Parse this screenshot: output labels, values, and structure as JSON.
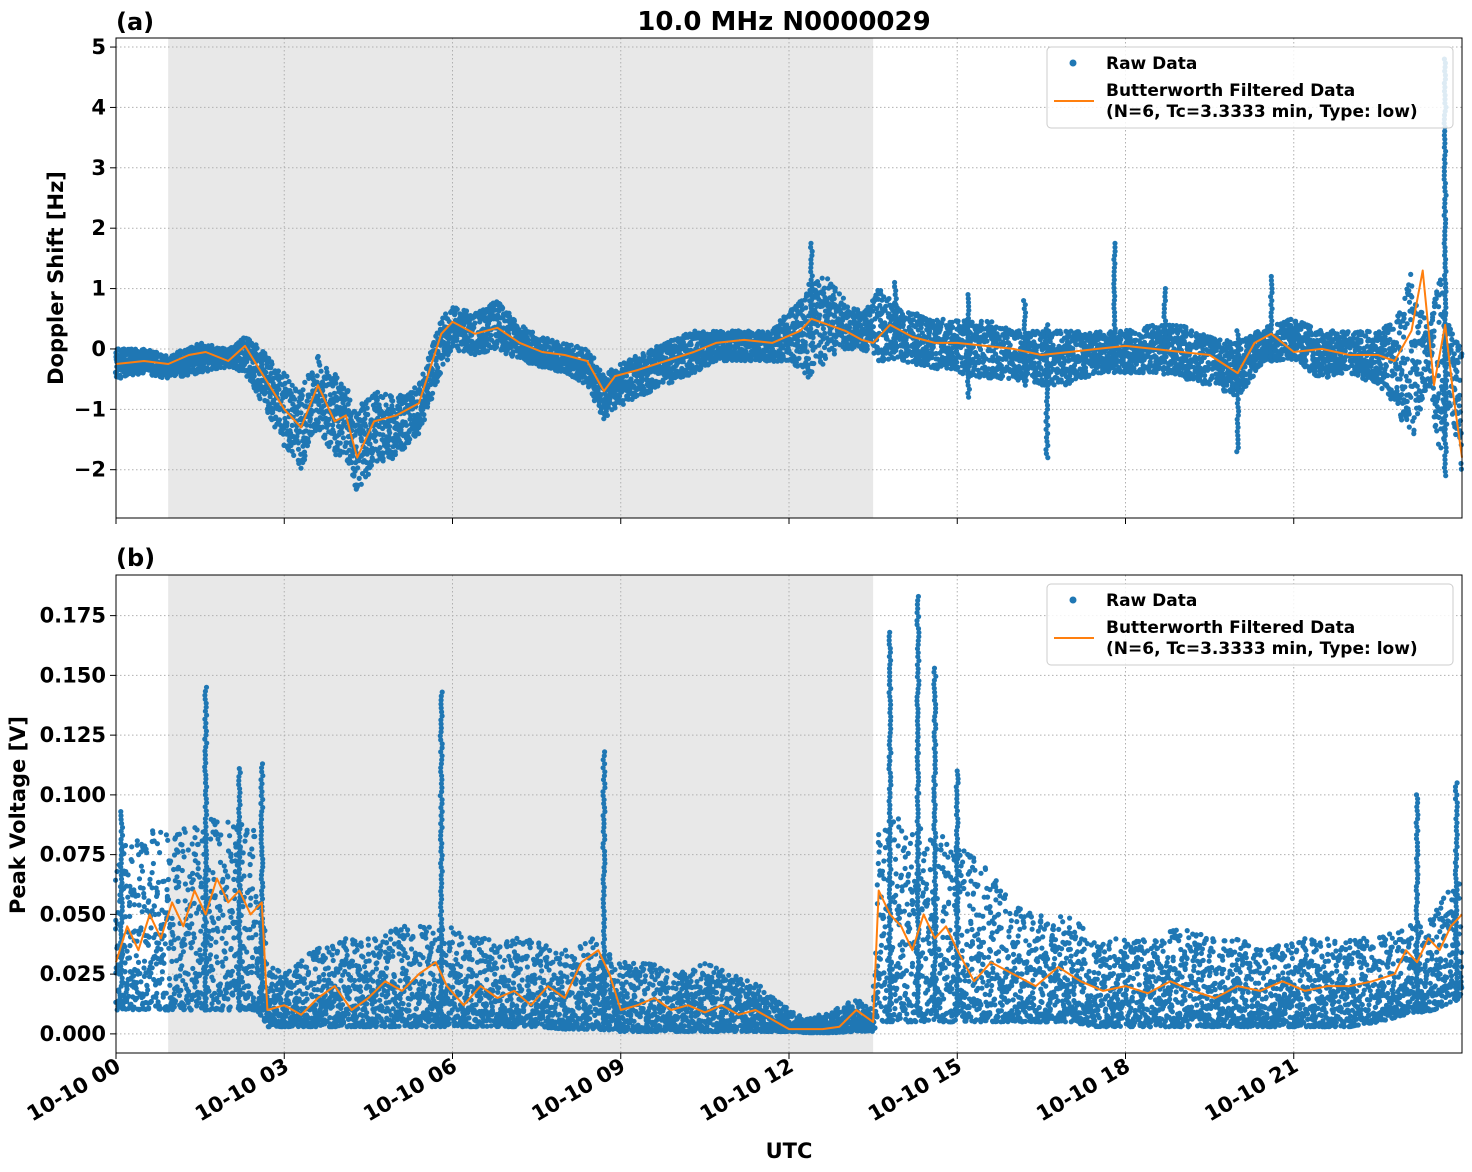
{
  "figure": {
    "title": "10.0 MHz N0000029",
    "xlabel": "UTC",
    "x_tick_labels": [
      "10-10 00",
      "10-10 03",
      "10-10 06",
      "10-10 09",
      "10-10 12",
      "10-10 15",
      "10-10 18",
      "10-10 21"
    ]
  },
  "chart_data": [
    {
      "type": "scatter",
      "panel_label": "(a)",
      "ylabel": "Doppler Shift [Hz]",
      "xlim_hours": [
        0,
        24
      ],
      "ylim": [
        -2.8,
        5.15
      ],
      "y_ticks": [
        -2,
        -1,
        0,
        1,
        2,
        3,
        4,
        5
      ],
      "y_tick_labels": [
        "−2",
        "−1",
        "0",
        "1",
        "2",
        "3",
        "4",
        "5"
      ],
      "grid": true,
      "legend_position": "top-right",
      "shaded_interval_hours": [
        0.93,
        13.5
      ],
      "series": [
        {
          "name": "Raw Data",
          "marker": "point",
          "color": "#1f77b4",
          "band_hours": [
            0,
            0.5,
            0.93,
            1.5,
            2.0,
            2.3,
            2.6,
            3.0,
            3.3,
            3.6,
            3.9,
            4.1,
            4.3,
            4.6,
            5.0,
            5.4,
            5.8,
            6.0,
            6.4,
            6.8,
            7.2,
            7.6,
            8.0,
            8.4,
            8.7,
            8.9,
            9.3,
            9.8,
            10.3,
            10.7,
            11.2,
            11.7,
            12.2,
            12.4,
            12.7,
            13.0,
            13.3,
            13.6,
            14.0,
            14.5,
            15.0,
            15.5,
            16.0,
            16.5,
            17.0,
            17.5,
            18.0,
            18.5,
            19.0,
            19.5,
            20.0,
            20.5,
            21.0,
            21.5,
            22.0,
            22.5,
            22.8,
            23.1,
            23.4,
            23.6,
            23.8,
            24.0
          ],
          "band_low": [
            -0.5,
            -0.4,
            -0.5,
            -0.4,
            -0.3,
            -0.4,
            -0.9,
            -1.6,
            -2.0,
            -1.3,
            -1.8,
            -1.8,
            -2.4,
            -1.9,
            -1.8,
            -1.4,
            -0.4,
            0.0,
            -0.1,
            0.0,
            -0.2,
            -0.3,
            -0.4,
            -0.6,
            -1.2,
            -1.0,
            -0.8,
            -0.6,
            -0.4,
            -0.2,
            -0.2,
            -0.2,
            -0.3,
            -0.6,
            -0.2,
            0.0,
            0.0,
            -0.2,
            -0.2,
            -0.3,
            -0.4,
            -0.5,
            -0.5,
            -0.6,
            -0.6,
            -0.4,
            -0.4,
            -0.4,
            -0.5,
            -0.6,
            -0.8,
            -0.2,
            -0.2,
            -0.5,
            -0.4,
            -0.6,
            -0.9,
            -1.6,
            -0.6,
            -1.8,
            -1.0,
            -2.1
          ],
          "band_high": [
            0.0,
            0.0,
            -0.1,
            0.1,
            0.0,
            0.2,
            0.0,
            -0.4,
            -0.7,
            -0.1,
            -0.4,
            -0.6,
            -1.0,
            -0.7,
            -0.8,
            -0.6,
            0.5,
            0.7,
            0.6,
            0.8,
            0.4,
            0.2,
            0.1,
            0.0,
            -0.4,
            -0.3,
            -0.1,
            0.1,
            0.3,
            0.3,
            0.3,
            0.3,
            0.9,
            1.2,
            1.2,
            0.8,
            0.6,
            1.0,
            0.7,
            0.5,
            0.5,
            0.5,
            0.3,
            0.3,
            0.3,
            0.3,
            0.3,
            0.4,
            0.4,
            0.2,
            0.1,
            0.4,
            0.5,
            0.3,
            0.3,
            0.3,
            0.5,
            1.3,
            0.3,
            1.3,
            0.3,
            0.0
          ],
          "spikes": [
            {
              "x_hours": 12.4,
              "low": 0.2,
              "high": 1.75
            },
            {
              "x_hours": 13.9,
              "low": 0.1,
              "high": 1.1
            },
            {
              "x_hours": 15.2,
              "low": -0.8,
              "high": 0.9
            },
            {
              "x_hours": 16.2,
              "low": -0.6,
              "high": 0.8
            },
            {
              "x_hours": 16.6,
              "low": -1.8,
              "high": 0.4
            },
            {
              "x_hours": 17.8,
              "low": 0.0,
              "high": 1.75
            },
            {
              "x_hours": 18.7,
              "low": -0.2,
              "high": 1.0
            },
            {
              "x_hours": 20.0,
              "low": -1.7,
              "high": 0.3
            },
            {
              "x_hours": 20.6,
              "low": -0.2,
              "high": 1.2
            },
            {
              "x_hours": 23.7,
              "low": -2.1,
              "high": 4.8
            }
          ]
        },
        {
          "name": "Butterworth Filtered Data\n(N=6, Tc=3.3333 min, Type: low)",
          "marker": "line",
          "color": "#ff7f0e",
          "x_hours": [
            0,
            0.5,
            0.93,
            1.3,
            1.6,
            2.0,
            2.3,
            2.6,
            3.0,
            3.3,
            3.6,
            3.9,
            4.1,
            4.3,
            4.6,
            5.0,
            5.4,
            5.8,
            6.0,
            6.4,
            6.8,
            7.2,
            7.6,
            8.0,
            8.4,
            8.7,
            8.9,
            9.3,
            9.8,
            10.3,
            10.7,
            11.2,
            11.7,
            12.2,
            12.4,
            12.7,
            13.0,
            13.3,
            13.5,
            13.8,
            14.2,
            14.6,
            15.0,
            15.5,
            16.0,
            16.5,
            17.0,
            17.5,
            18.0,
            18.5,
            19.0,
            19.5,
            20.0,
            20.3,
            20.6,
            21.0,
            21.5,
            22.0,
            22.5,
            22.8,
            23.1,
            23.3,
            23.5,
            23.7,
            23.85,
            24.0
          ],
          "y": [
            -0.25,
            -0.2,
            -0.25,
            -0.1,
            -0.05,
            -0.2,
            0.05,
            -0.4,
            -1.0,
            -1.3,
            -0.6,
            -1.2,
            -1.1,
            -1.8,
            -1.2,
            -1.1,
            -0.9,
            0.25,
            0.45,
            0.25,
            0.35,
            0.1,
            -0.05,
            -0.1,
            -0.2,
            -0.7,
            -0.45,
            -0.35,
            -0.2,
            -0.05,
            0.1,
            0.15,
            0.1,
            0.3,
            0.5,
            0.4,
            0.3,
            0.15,
            0.1,
            0.4,
            0.2,
            0.1,
            0.1,
            0.05,
            0.0,
            -0.1,
            -0.05,
            0.0,
            0.05,
            0.0,
            -0.05,
            -0.1,
            -0.4,
            0.1,
            0.25,
            -0.05,
            0.0,
            -0.1,
            -0.1,
            -0.2,
            0.3,
            1.3,
            -0.6,
            0.4,
            -0.8,
            -1.8
          ]
        }
      ]
    },
    {
      "type": "scatter",
      "panel_label": "(b)",
      "ylabel": "Peak Voltage [V]",
      "xlim_hours": [
        0,
        24
      ],
      "ylim": [
        -0.008,
        0.192
      ],
      "y_ticks": [
        0,
        0.025,
        0.05,
        0.075,
        0.1,
        0.125,
        0.15,
        0.175
      ],
      "y_tick_labels": [
        "0.000",
        "0.025",
        "0.050",
        "0.075",
        "0.100",
        "0.125",
        "0.150",
        "0.175"
      ],
      "grid": true,
      "legend_position": "top-right",
      "shaded_interval_hours": [
        0.93,
        13.5
      ],
      "series": [
        {
          "name": "Raw Data",
          "marker": "point",
          "color": "#1f77b4",
          "band_hours": [
            0,
            0.5,
            1.0,
            1.5,
            2.0,
            2.5,
            2.7,
            3.0,
            3.5,
            4.0,
            4.5,
            5.0,
            5.5,
            6.0,
            6.5,
            7.0,
            7.5,
            8.0,
            8.5,
            9.0,
            9.5,
            10.0,
            10.5,
            11.0,
            11.5,
            12.0,
            12.3,
            12.8,
            13.2,
            13.5,
            13.6,
            14.0,
            14.5,
            15.0,
            15.5,
            16.0,
            16.5,
            17.0,
            17.5,
            18.0,
            18.5,
            19.0,
            19.5,
            20.0,
            20.5,
            21.0,
            21.5,
            22.0,
            22.5,
            23.0,
            23.5,
            24.0
          ],
          "band_low": [
            0.01,
            0.01,
            0.01,
            0.01,
            0.01,
            0.01,
            0.003,
            0.003,
            0.003,
            0.003,
            0.003,
            0.003,
            0.003,
            0.003,
            0.003,
            0.003,
            0.003,
            0.002,
            0.002,
            0.001,
            0.001,
            0.001,
            0.001,
            0.001,
            0.001,
            0.001,
            0.0005,
            0.0005,
            0.001,
            0.001,
            0.005,
            0.005,
            0.005,
            0.005,
            0.005,
            0.005,
            0.005,
            0.005,
            0.003,
            0.003,
            0.003,
            0.003,
            0.003,
            0.003,
            0.003,
            0.003,
            0.003,
            0.003,
            0.005,
            0.008,
            0.01,
            0.015
          ],
          "band_high": [
            0.08,
            0.085,
            0.085,
            0.09,
            0.09,
            0.085,
            0.03,
            0.025,
            0.035,
            0.04,
            0.04,
            0.045,
            0.045,
            0.045,
            0.04,
            0.04,
            0.04,
            0.035,
            0.04,
            0.03,
            0.03,
            0.025,
            0.03,
            0.025,
            0.02,
            0.01,
            0.006,
            0.01,
            0.015,
            0.01,
            0.09,
            0.09,
            0.085,
            0.08,
            0.07,
            0.055,
            0.05,
            0.05,
            0.04,
            0.04,
            0.04,
            0.045,
            0.04,
            0.04,
            0.035,
            0.04,
            0.04,
            0.04,
            0.04,
            0.045,
            0.05,
            0.07
          ],
          "spikes": [
            {
              "x_hours": 0.1,
              "low": 0.02,
              "high": 0.093
            },
            {
              "x_hours": 1.6,
              "low": 0.01,
              "high": 0.145
            },
            {
              "x_hours": 2.2,
              "low": 0.01,
              "high": 0.111
            },
            {
              "x_hours": 2.6,
              "low": 0.01,
              "high": 0.113
            },
            {
              "x_hours": 5.8,
              "low": 0.003,
              "high": 0.143
            },
            {
              "x_hours": 8.7,
              "low": 0.003,
              "high": 0.118
            },
            {
              "x_hours": 13.8,
              "low": 0.01,
              "high": 0.168
            },
            {
              "x_hours": 14.3,
              "low": 0.01,
              "high": 0.183
            },
            {
              "x_hours": 14.6,
              "low": 0.01,
              "high": 0.153
            },
            {
              "x_hours": 15.0,
              "low": 0.01,
              "high": 0.11
            },
            {
              "x_hours": 23.2,
              "low": 0.01,
              "high": 0.1
            },
            {
              "x_hours": 23.9,
              "low": 0.015,
              "high": 0.105
            }
          ]
        },
        {
          "name": "Butterworth Filtered Data\n(N=6, Tc=3.3333 min, Type: low)",
          "marker": "line",
          "color": "#ff7f0e",
          "x_hours": [
            0,
            0.2,
            0.4,
            0.6,
            0.8,
            1.0,
            1.2,
            1.4,
            1.6,
            1.8,
            2.0,
            2.2,
            2.4,
            2.6,
            2.7,
            3.0,
            3.3,
            3.6,
            3.9,
            4.2,
            4.5,
            4.8,
            5.1,
            5.4,
            5.7,
            5.9,
            6.2,
            6.5,
            6.8,
            7.1,
            7.4,
            7.7,
            8.0,
            8.3,
            8.6,
            8.8,
            9.0,
            9.3,
            9.6,
            9.9,
            10.2,
            10.5,
            10.8,
            11.1,
            11.4,
            11.7,
            12.0,
            12.3,
            12.6,
            12.9,
            13.2,
            13.5,
            13.6,
            13.8,
            14.0,
            14.2,
            14.4,
            14.6,
            14.8,
            15.0,
            15.3,
            15.6,
            16.0,
            16.4,
            16.8,
            17.2,
            17.6,
            18.0,
            18.4,
            18.8,
            19.2,
            19.6,
            20.0,
            20.4,
            20.8,
            21.2,
            21.6,
            22.0,
            22.4,
            22.8,
            23.0,
            23.2,
            23.4,
            23.6,
            23.8,
            24.0
          ],
          "y": [
            0.03,
            0.045,
            0.035,
            0.05,
            0.04,
            0.055,
            0.045,
            0.06,
            0.05,
            0.065,
            0.055,
            0.06,
            0.05,
            0.055,
            0.01,
            0.012,
            0.008,
            0.015,
            0.02,
            0.01,
            0.015,
            0.022,
            0.018,
            0.025,
            0.03,
            0.02,
            0.012,
            0.02,
            0.015,
            0.018,
            0.012,
            0.02,
            0.015,
            0.03,
            0.035,
            0.025,
            0.01,
            0.012,
            0.015,
            0.01,
            0.012,
            0.009,
            0.012,
            0.008,
            0.01,
            0.006,
            0.002,
            0.002,
            0.002,
            0.003,
            0.01,
            0.005,
            0.06,
            0.05,
            0.045,
            0.035,
            0.05,
            0.04,
            0.045,
            0.035,
            0.022,
            0.03,
            0.025,
            0.02,
            0.028,
            0.022,
            0.018,
            0.02,
            0.017,
            0.022,
            0.018,
            0.015,
            0.02,
            0.018,
            0.022,
            0.018,
            0.02,
            0.02,
            0.022,
            0.025,
            0.035,
            0.03,
            0.04,
            0.035,
            0.045,
            0.05
          ]
        }
      ]
    }
  ]
}
